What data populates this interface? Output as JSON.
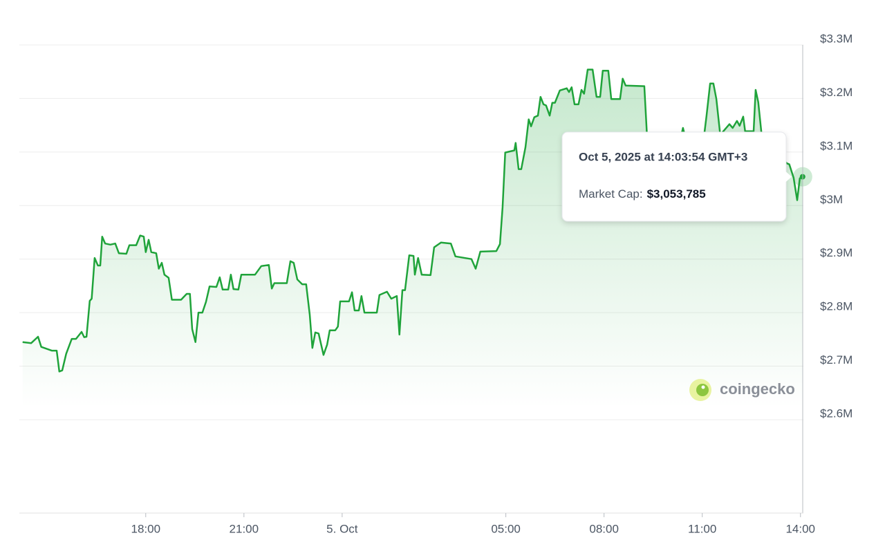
{
  "chart_data": {
    "type": "area",
    "series": [
      {
        "name": "Market Cap",
        "color": "#1fa33a",
        "x": [
          -9.76,
          -9.5,
          -9.29,
          -9.19,
          -8.87,
          -8.72,
          -8.64,
          -8.55,
          -8.43,
          -8.26,
          -8.13,
          -7.96,
          -7.88,
          -7.81,
          -7.71,
          -7.65,
          -7.56,
          -7.46,
          -7.39,
          -7.33,
          -7.24,
          -7.08,
          -6.93,
          -6.82,
          -6.59,
          -6.5,
          -6.29,
          -6.17,
          -6.06,
          -6.0,
          -5.91,
          -5.83,
          -5.68,
          -5.6,
          -5.51,
          -5.43,
          -5.3,
          -5.2,
          -4.92,
          -4.75,
          -4.65,
          -4.58,
          -4.48,
          -4.39,
          -4.27,
          -4.16,
          -4.05,
          -3.84,
          -3.74,
          -3.65,
          -3.48,
          -3.4,
          -3.32,
          -3.17,
          -3.08,
          -2.66,
          -2.47,
          -2.24,
          -2.15,
          -2.07,
          -1.69,
          -1.58,
          -1.48,
          -1.37,
          -1.22,
          -1.1,
          -0.99,
          -0.91,
          -0.82,
          -0.72,
          -0.57,
          -0.46,
          -0.38,
          -0.21,
          -0.13,
          -0.06,
          0.21,
          0.3,
          0.38,
          0.51,
          0.59,
          0.68,
          1.06,
          1.14,
          1.37,
          1.5,
          1.67,
          1.75,
          1.84,
          1.92,
          2.05,
          2.18,
          2.22,
          2.32,
          2.43,
          2.7,
          2.81,
          3.02,
          3.32,
          3.46,
          3.95,
          4.08,
          4.22,
          4.71,
          4.82,
          4.9,
          4.98,
          5.26,
          5.3,
          5.39,
          5.47,
          5.6,
          5.7,
          5.77,
          5.87,
          5.98,
          6.06,
          6.15,
          6.23,
          6.34,
          6.42,
          6.5,
          6.65,
          6.86,
          6.93,
          7.01,
          7.1,
          7.22,
          7.31,
          7.39,
          7.5,
          7.65,
          7.77,
          7.88,
          7.96,
          8.13,
          8.22,
          8.49,
          8.57,
          8.66,
          9.23,
          9.31,
          9.82,
          10.35,
          10.41,
          10.5,
          11.05,
          11.13,
          11.24,
          11.34,
          11.43,
          11.55,
          11.83,
          11.93,
          12.06,
          12.14,
          12.25,
          12.31,
          12.57,
          12.63,
          12.71,
          12.82,
          13.2,
          13.58,
          13.66,
          13.79,
          13.9,
          13.98,
          14.065
        ],
        "values": [
          2745000,
          2743000,
          2755000,
          2736000,
          2729000,
          2729000,
          2690000,
          2692000,
          2723000,
          2751000,
          2751000,
          2764000,
          2754000,
          2755000,
          2822000,
          2826000,
          2902000,
          2888000,
          2888000,
          2942000,
          2929000,
          2927000,
          2929000,
          2911000,
          2910000,
          2926000,
          2926000,
          2944000,
          2942000,
          2913000,
          2936000,
          2913000,
          2911000,
          2882000,
          2893000,
          2871000,
          2865000,
          2824000,
          2824000,
          2835000,
          2835000,
          2769000,
          2745000,
          2800000,
          2800000,
          2820000,
          2849000,
          2848000,
          2866000,
          2843000,
          2843000,
          2871000,
          2844000,
          2843000,
          2871000,
          2871000,
          2887000,
          2889000,
          2845000,
          2855000,
          2855000,
          2896000,
          2893000,
          2862000,
          2853000,
          2853000,
          2796000,
          2734000,
          2763000,
          2761000,
          2721000,
          2740000,
          2767000,
          2767000,
          2774000,
          2821000,
          2821000,
          2838000,
          2804000,
          2804000,
          2831000,
          2800000,
          2800000,
          2833000,
          2839000,
          2826000,
          2831000,
          2759000,
          2842000,
          2842000,
          2907000,
          2906000,
          2871000,
          2902000,
          2871000,
          2870000,
          2922000,
          2931000,
          2929000,
          2905000,
          2900000,
          2882000,
          2914000,
          2915000,
          2928000,
          2997000,
          3099000,
          3103000,
          3117000,
          3068000,
          3068000,
          3109000,
          3161000,
          3148000,
          3165000,
          3168000,
          3203000,
          3189000,
          3187000,
          3168000,
          3192000,
          3192000,
          3215000,
          3219000,
          3212000,
          3221000,
          3189000,
          3189000,
          3216000,
          3209000,
          3254000,
          3254000,
          3203000,
          3203000,
          3252000,
          3252000,
          3199000,
          3199000,
          3237000,
          3224000,
          3223000,
          3132000,
          3126000,
          3128000,
          3145000,
          3123000,
          3128000,
          3167000,
          3228000,
          3228000,
          3199000,
          3132000,
          3152000,
          3145000,
          3158000,
          3149000,
          3166000,
          3139000,
          3139000,
          3216000,
          3193000,
          3128000,
          3106000,
          3079000,
          3077000,
          3052000,
          3010000,
          3051000,
          3053785
        ]
      }
    ],
    "xlim": [
      -9.86,
      14.09
    ],
    "xticks": [
      {
        "value": -6,
        "label": "18:00"
      },
      {
        "value": -3,
        "label": "21:00"
      },
      {
        "value": 0,
        "label": "5. Oct"
      },
      {
        "value": 5,
        "label": "05:00"
      },
      {
        "value": 8,
        "label": "08:00"
      },
      {
        "value": 11,
        "label": "11:00"
      },
      {
        "value": 14,
        "label": "14:00"
      }
    ],
    "ylim": [
      2425600,
      3300000
    ],
    "yticks": [
      {
        "value": 2600000,
        "label": "$2.6M"
      },
      {
        "value": 2700000,
        "label": "$2.7M"
      },
      {
        "value": 2800000,
        "label": "$2.8M"
      },
      {
        "value": 2900000,
        "label": "$2.9M"
      },
      {
        "value": 3000000,
        "label": "$3M"
      },
      {
        "value": 3100000,
        "label": "$3.1M"
      },
      {
        "value": 3200000,
        "label": "$3.2M"
      },
      {
        "value": 3300000,
        "label": "$3.3M"
      }
    ],
    "grid": true,
    "tooltip": {
      "title": "Oct 5, 2025 at 14:03:54 GMT+3",
      "label": "Market Cap:",
      "value": "$3,053,785"
    },
    "watermark": "coingecko"
  }
}
